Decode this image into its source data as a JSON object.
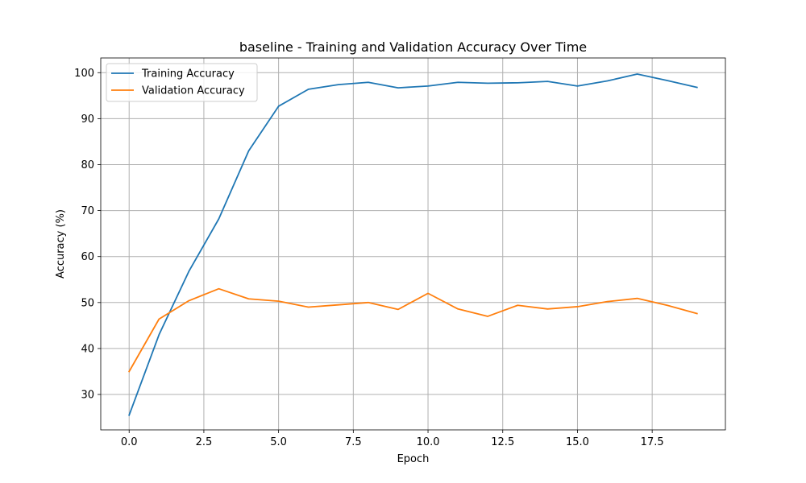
{
  "chart_data": {
    "type": "line",
    "title": "baseline - Training and Validation Accuracy Over Time",
    "xlabel": "Epoch",
    "ylabel": "Accuracy (%)",
    "xlim": [
      -0.95,
      19.95
    ],
    "ylim": [
      22.3,
      103.2
    ],
    "xticks": [
      0.0,
      2.5,
      5.0,
      7.5,
      10.0,
      12.5,
      15.0,
      17.5
    ],
    "xtick_labels": [
      "0.0",
      "2.5",
      "5.0",
      "7.5",
      "10.0",
      "12.5",
      "15.0",
      "17.5"
    ],
    "yticks": [
      30,
      40,
      50,
      60,
      70,
      80,
      90,
      100
    ],
    "ytick_labels": [
      "30",
      "40",
      "50",
      "60",
      "70",
      "80",
      "90",
      "100"
    ],
    "grid": true,
    "legend_position": "top-left",
    "x": [
      0,
      1,
      2,
      3,
      4,
      5,
      6,
      7,
      8,
      9,
      10,
      11,
      12,
      13,
      14,
      15,
      16,
      17,
      18,
      19
    ],
    "series": [
      {
        "name": "Training Accuracy",
        "color": "#1f77b4",
        "values": [
          25.5,
          43.0,
          56.8,
          68.2,
          83.0,
          92.7,
          96.4,
          97.4,
          97.9,
          96.7,
          97.1,
          97.9,
          97.7,
          97.8,
          98.1,
          97.1,
          98.2,
          99.7,
          98.3,
          96.8
        ]
      },
      {
        "name": "Validation Accuracy",
        "color": "#ff7f0e",
        "values": [
          35.0,
          46.4,
          50.4,
          53.0,
          50.8,
          50.3,
          49.0,
          49.5,
          50.0,
          48.5,
          52.0,
          48.6,
          47.0,
          49.4,
          48.6,
          49.1,
          50.2,
          50.9,
          49.4,
          47.6
        ]
      }
    ]
  }
}
